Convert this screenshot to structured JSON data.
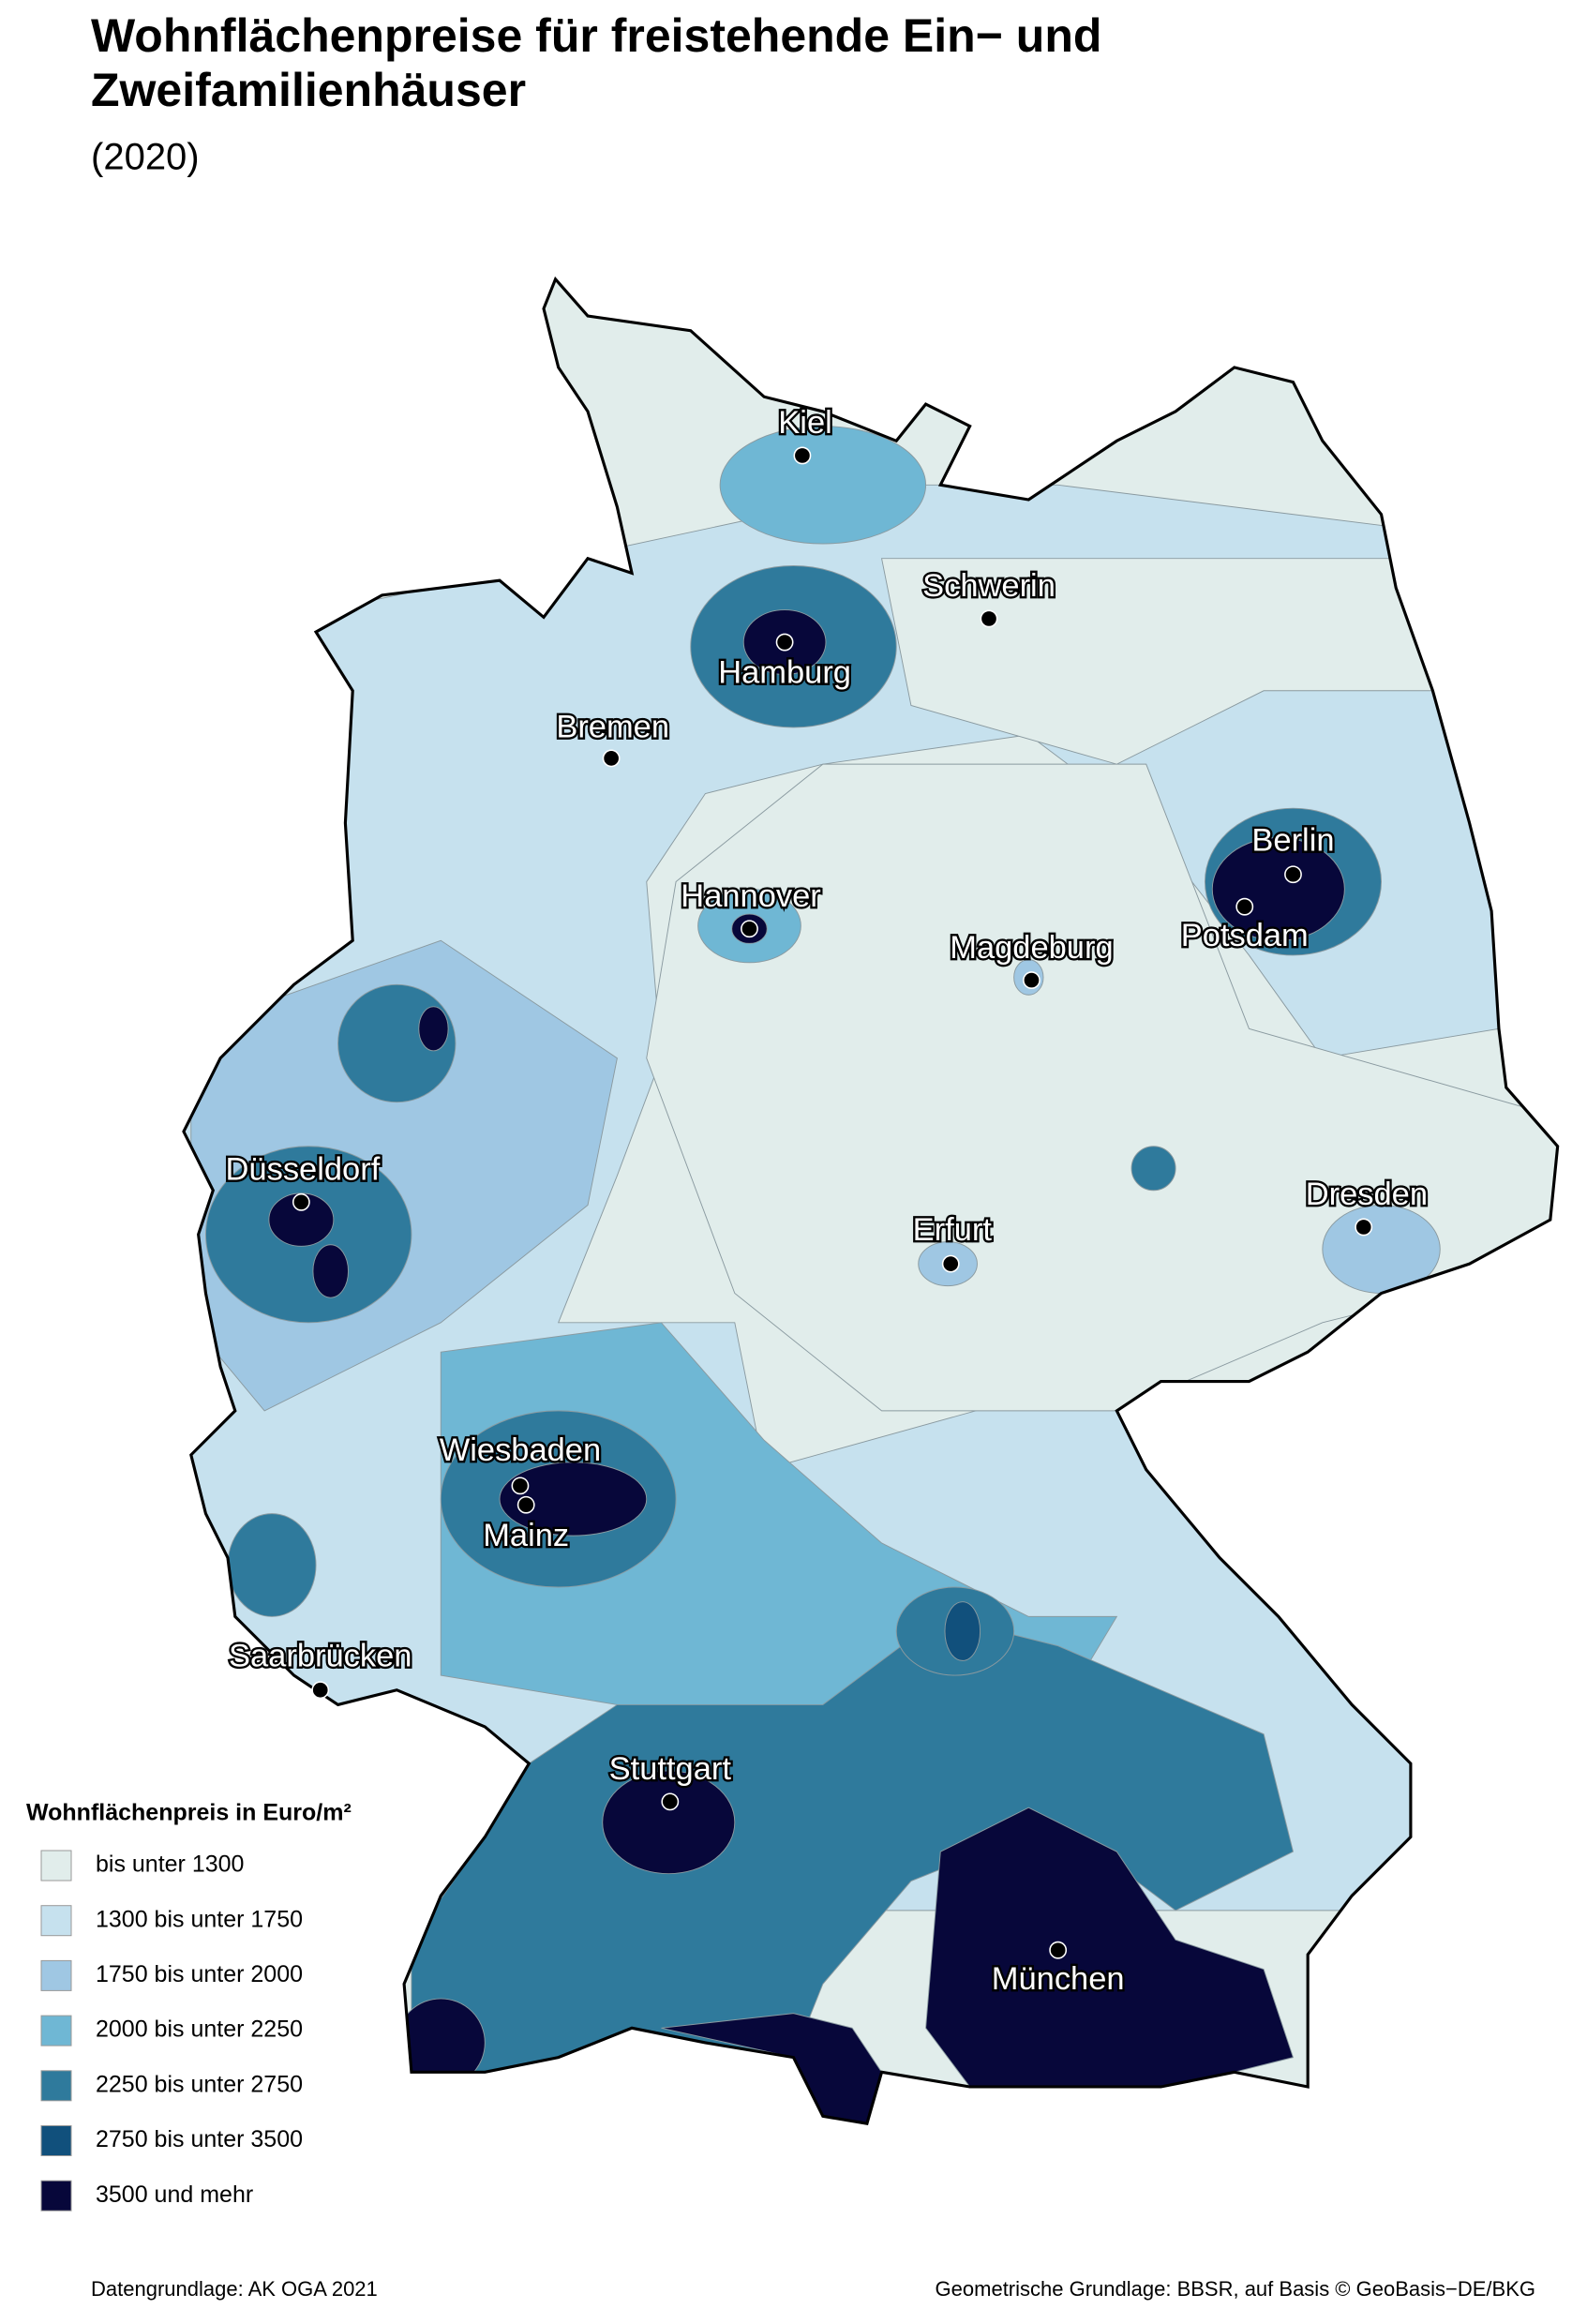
{
  "title_lines": [
    "Wohnflächenpreise für freistehende Ein− und",
    "Zweifamilienhäuser"
  ],
  "subtitle": "(2020)",
  "cities": [
    "Kiel",
    "Schwerin",
    "Hamburg",
    "Bremen",
    "Hannover",
    "Berlin",
    "Potsdam",
    "Magdeburg",
    "Düsseldorf",
    "Dresden",
    "Erfurt",
    "Wiesbaden",
    "Mainz",
    "Saarbrücken",
    "Stuttgart",
    "München"
  ],
  "legend": {
    "title": "Wohnflächenpreis in Euro/m²",
    "items": [
      {
        "label": "bis unter 1300",
        "color": "#e1edeb"
      },
      {
        "label": "1300 bis unter 1750",
        "color": "#c6e1ee"
      },
      {
        "label": "1750 bis unter 2000",
        "color": "#9fc7e3"
      },
      {
        "label": "2000 bis unter 2250",
        "color": "#6fb7d4"
      },
      {
        "label": "2250 bis unter 2750",
        "color": "#2f7a9c"
      },
      {
        "label": "2750 bis unter 3500",
        "color": "#11507c"
      },
      {
        "label": "3500 und mehr",
        "color": "#07073a"
      }
    ]
  },
  "footer": {
    "left": "Datengrundlage: AK OGA 2021",
    "right": "Geometrische Grundlage: BBSR, auf Basis © GeoBasis−DE/BKG"
  }
}
